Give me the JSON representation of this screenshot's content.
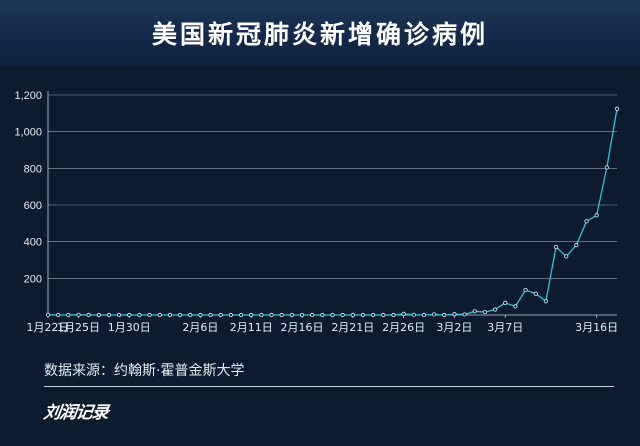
{
  "header": {
    "title": "美国新冠肺炎新增确诊病例"
  },
  "footer": {
    "source": "数据来源：约翰斯·霍普金斯大学",
    "logo_text": "刘润记录"
  },
  "colors": {
    "background": "#0d1b2e",
    "banner": "#1b3356",
    "line": "#2ec4d6",
    "grid": "#c8d0da",
    "text": "#e6edf5"
  },
  "chart_data": {
    "type": "line",
    "title": "",
    "xlabel": "",
    "ylabel": "",
    "ylim": [
      0,
      1200
    ],
    "yticks": [
      200,
      400,
      600,
      800,
      1000,
      1200
    ],
    "ytick_labels": [
      "200",
      "400",
      "600",
      "800",
      "1,000",
      "1,200"
    ],
    "grid": true,
    "xticks": [
      {
        "label": "1月22日",
        "index": 0
      },
      {
        "label": "1月25日",
        "index": 3
      },
      {
        "label": "1月30日",
        "index": 8
      },
      {
        "label": "2月6日",
        "index": 15
      },
      {
        "label": "2月11日",
        "index": 20
      },
      {
        "label": "2月16日",
        "index": 25
      },
      {
        "label": "2月21日",
        "index": 30
      },
      {
        "label": "2月26日",
        "index": 35
      },
      {
        "label": "3月2日",
        "index": 40
      },
      {
        "label": "3月7日",
        "index": 45
      },
      {
        "label": "3月16日",
        "index": 54
      }
    ],
    "series": [
      {
        "values": [
          1,
          0,
          0,
          1,
          0,
          0,
          0,
          0,
          0,
          0,
          0,
          0,
          0,
          0,
          0,
          0,
          0,
          0,
          0,
          0,
          0,
          0,
          0,
          0,
          0,
          0,
          0,
          0,
          0,
          0,
          0,
          0,
          0,
          0,
          0,
          6,
          1,
          0,
          3,
          0,
          4,
          3,
          20,
          16,
          30,
          66,
          47,
          136,
          116,
          75,
          371,
          320,
          381,
          511,
          544,
          805,
          1125
        ]
      }
    ]
  }
}
